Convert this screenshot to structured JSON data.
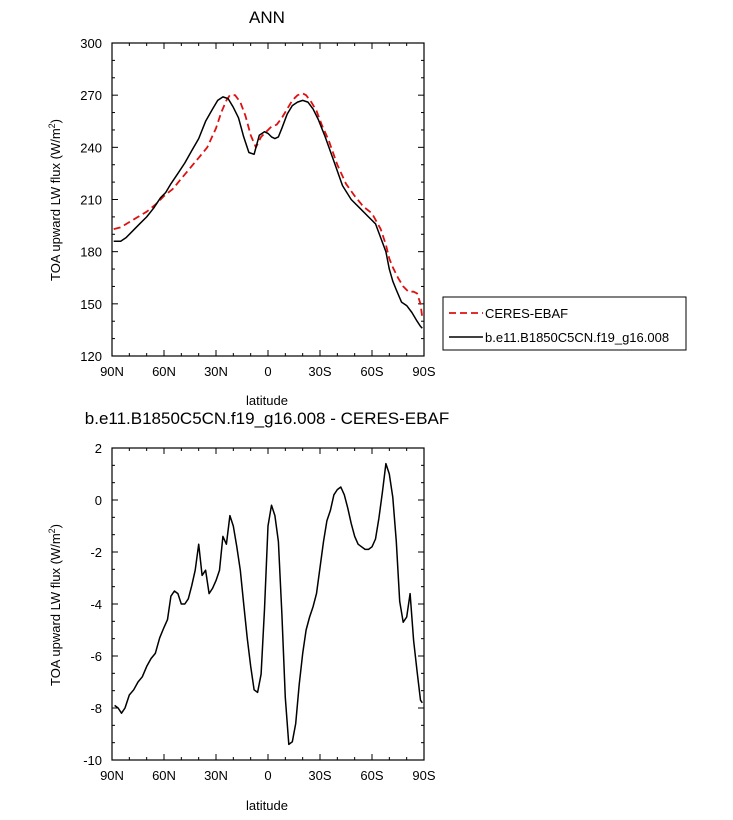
{
  "chart_data": [
    {
      "type": "line",
      "title": "ANN",
      "xlabel": "latitude",
      "ylabel": "TOA upward LW flux (W/m",
      "ylabel_superscript": "2",
      "ylabel_suffix": ")",
      "xlim": [
        90,
        -90
      ],
      "ylim": [
        120,
        300
      ],
      "xtick_values": [
        90,
        60,
        30,
        0,
        -30,
        -60,
        -90
      ],
      "xtick_labels": [
        "90N",
        "60N",
        "30N",
        "0",
        "30S",
        "60S",
        "90S"
      ],
      "ytick_values": [
        120,
        150,
        180,
        210,
        240,
        270,
        300
      ],
      "ytick_labels": [
        "120",
        "150",
        "180",
        "210",
        "240",
        "270",
        "300"
      ],
      "legend_position": "right",
      "series": [
        {
          "name": "CERES-EBAF",
          "color": "#e01010",
          "dash": "dashed",
          "x": [
            89,
            85,
            80,
            75,
            70,
            65,
            60,
            55,
            50,
            45,
            40,
            35,
            30,
            27,
            24,
            22,
            19,
            16,
            13,
            10,
            7,
            4,
            1,
            -2,
            -5,
            -8,
            -11,
            -14,
            -17,
            -20,
            -22,
            -25,
            -28,
            -31,
            -35,
            -40,
            -45,
            -50,
            -55,
            -60,
            -65,
            -68,
            -70,
            -72,
            -75,
            -78,
            -81,
            -84,
            -86,
            -88,
            -89
          ],
          "y": [
            193,
            194,
            197,
            200,
            203,
            207,
            212,
            216,
            222,
            228,
            234,
            240,
            251,
            260,
            267,
            270,
            270,
            266,
            258,
            247,
            240,
            246,
            249,
            252,
            253,
            257,
            262,
            267,
            270,
            271,
            270,
            266,
            261,
            253,
            244,
            230,
            219,
            212,
            206,
            202,
            193,
            184,
            176,
            171,
            165,
            160,
            157,
            157,
            156,
            150,
            142
          ]
        },
        {
          "name": "b.e11.B1850C5CN.f19_g16.008",
          "color": "#000000",
          "dash": "solid",
          "x": [
            89,
            85,
            82,
            78,
            74,
            70,
            66,
            62,
            59,
            56,
            52,
            48,
            44,
            40,
            36,
            32,
            29,
            26,
            23,
            20,
            17,
            14,
            11,
            8,
            5,
            2,
            0,
            -2,
            -4,
            -6,
            -8,
            -11,
            -14,
            -17,
            -20,
            -23,
            -26,
            -29,
            -33,
            -38,
            -43,
            -48,
            -53,
            -58,
            -62,
            -65,
            -68,
            -70,
            -72,
            -74,
            -77,
            -80,
            -83,
            -86,
            -88,
            -89
          ],
          "y": [
            186,
            186,
            188,
            192,
            196,
            200,
            205,
            211,
            214,
            219,
            225,
            231,
            238,
            245,
            255,
            262,
            267,
            269,
            268,
            263,
            257,
            246,
            237,
            236,
            247,
            249,
            248,
            246,
            245,
            246,
            251,
            259,
            264,
            266,
            267,
            266,
            262,
            256,
            246,
            232,
            218,
            210,
            205,
            200,
            196,
            188,
            180,
            170,
            163,
            158,
            151,
            149,
            145,
            140,
            137,
            136
          ]
        }
      ]
    },
    {
      "type": "line",
      "title": "b.e11.B1850C5CN.f19_g16.008 - CERES-EBAF",
      "xlabel": "latitude",
      "ylabel": "TOA upward LW flux (W/m",
      "ylabel_superscript": "2",
      "ylabel_suffix": ")",
      "xlim": [
        90,
        -90
      ],
      "ylim": [
        -10,
        2
      ],
      "xtick_values": [
        90,
        60,
        30,
        0,
        -30,
        -60,
        -90
      ],
      "xtick_labels": [
        "90N",
        "60N",
        "30N",
        "0",
        "30S",
        "60S",
        "90S"
      ],
      "ytick_values": [
        -10,
        -8,
        -6,
        -4,
        -2,
        0,
        2
      ],
      "ytick_labels": [
        "-10",
        "-8",
        "-6",
        "-4",
        "-2",
        "0",
        "2"
      ],
      "series": [
        {
          "color": "#000000",
          "x": [
            88.5,
            86.5,
            84.5,
            82.5,
            80,
            77.5,
            75,
            72.5,
            70,
            67.5,
            65,
            62.5,
            60,
            58,
            56,
            54,
            52,
            50,
            48,
            46,
            44,
            42,
            40,
            38,
            36,
            34,
            32,
            30,
            28,
            26,
            24,
            22,
            20,
            18,
            16,
            14,
            12,
            10,
            8,
            6,
            4,
            2,
            0,
            -2,
            -4,
            -6,
            -8,
            -10,
            -12,
            -14,
            -16,
            -18,
            -20,
            -22,
            -24,
            -26,
            -28,
            -30,
            -32,
            -34,
            -36,
            -38,
            -40,
            -42,
            -44,
            -46,
            -48,
            -50,
            -52,
            -54,
            -56,
            -58,
            -60,
            -62,
            -64,
            -66,
            -68,
            -70,
            -72,
            -74,
            -76,
            -78,
            -80,
            -82,
            -84,
            -86,
            -88,
            -89
          ],
          "y": [
            -7.9,
            -8.0,
            -8.2,
            -8.0,
            -7.5,
            -7.3,
            -7.0,
            -6.8,
            -6.4,
            -6.1,
            -5.9,
            -5.3,
            -4.9,
            -4.6,
            -3.7,
            -3.5,
            -3.6,
            -4.0,
            -4.0,
            -3.8,
            -3.3,
            -2.7,
            -1.7,
            -2.9,
            -2.7,
            -3.6,
            -3.4,
            -3.1,
            -2.7,
            -1.4,
            -1.7,
            -0.6,
            -1.0,
            -1.8,
            -2.7,
            -4.0,
            -5.3,
            -6.4,
            -7.3,
            -7.4,
            -6.7,
            -4.2,
            -1.0,
            -0.2,
            -0.6,
            -1.6,
            -4.4,
            -7.6,
            -9.4,
            -9.3,
            -8.6,
            -7.1,
            -5.9,
            -5.0,
            -4.5,
            -4.1,
            -3.6,
            -2.6,
            -1.6,
            -0.8,
            -0.4,
            0.2,
            0.4,
            0.5,
            0.2,
            -0.3,
            -0.9,
            -1.4,
            -1.7,
            -1.8,
            -1.9,
            -1.9,
            -1.8,
            -1.5,
            -0.7,
            0.3,
            1.4,
            1.0,
            0.1,
            -1.6,
            -3.9,
            -4.7,
            -4.5,
            -3.6,
            -5.4,
            -6.6,
            -7.7,
            -7.8
          ]
        }
      ]
    }
  ],
  "legend": {
    "entries": [
      {
        "label": "CERES-EBAF",
        "color": "#e01010",
        "dash": "dashed"
      },
      {
        "label": "b.e11.B1850C5CN.f19_g16.008",
        "color": "#000000",
        "dash": "solid"
      }
    ]
  }
}
